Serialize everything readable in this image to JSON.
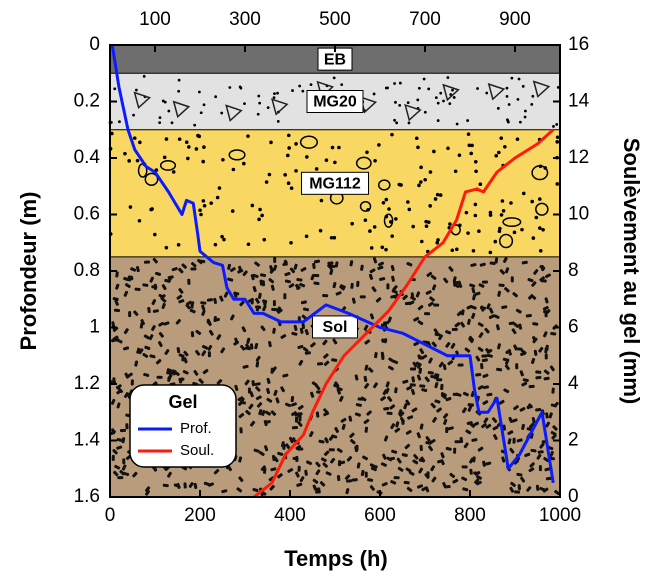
{
  "chart_data": {
    "type": "line",
    "x_label": "Temps (h)",
    "y_label": "Profondeur (m)",
    "y2_label": "Soulèvement au gel (mm)",
    "xlim": [
      0,
      1000
    ],
    "xticks": [
      0,
      200,
      400,
      600,
      800,
      1000
    ],
    "x2ticks": [
      100,
      300,
      500,
      700,
      900
    ],
    "ylim": [
      0,
      1.6
    ],
    "y_inverted": true,
    "yticks": [
      0,
      0.2,
      0.4,
      0.6,
      0.8,
      1,
      1.2,
      1.4,
      1.6
    ],
    "y2lim": [
      0,
      16
    ],
    "y2ticks": [
      0,
      2,
      4,
      6,
      8,
      10,
      12,
      14,
      16
    ],
    "legend_title": "Gel",
    "legend_position": "lower left",
    "layers": [
      {
        "name": "EB",
        "top": 0,
        "bottom": 0.1,
        "color": "#6e6e6e"
      },
      {
        "name": "MG20",
        "top": 0.1,
        "bottom": 0.3,
        "color": "#e2e2e2"
      },
      {
        "name": "MG112",
        "top": 0.3,
        "bottom": 0.75,
        "color": "#f8d862"
      },
      {
        "name": "Sol",
        "top": 0.75,
        "bottom": 1.6,
        "color": "#b89c7c"
      }
    ],
    "series": [
      {
        "name": "Prof.",
        "color": "#0a1cff",
        "x": [
          5,
          20,
          40,
          55,
          80,
          100,
          130,
          160,
          170,
          185,
          195,
          200,
          230,
          250,
          260,
          275,
          300,
          320,
          340,
          380,
          430,
          480,
          530,
          600,
          650,
          700,
          750,
          800,
          810,
          820,
          840,
          860,
          885,
          910,
          960,
          985
        ],
        "values": [
          0,
          0.15,
          0.3,
          0.37,
          0.43,
          0.45,
          0.52,
          0.6,
          0.55,
          0.56,
          0.67,
          0.73,
          0.77,
          0.78,
          0.86,
          0.9,
          0.9,
          0.95,
          0.95,
          0.98,
          0.98,
          0.92,
          0.95,
          1.0,
          1.02,
          1.06,
          1.1,
          1.1,
          1.22,
          1.3,
          1.3,
          1.25,
          1.5,
          1.45,
          1.3,
          1.55
        ]
      },
      {
        "name": "Soul.",
        "color": "#ff1a0a",
        "axis": "y2",
        "x": [
          320,
          360,
          390,
          430,
          450,
          480,
          520,
          570,
          620,
          660,
          700,
          740,
          770,
          790,
          815,
          830,
          860,
          900,
          950,
          985
        ],
        "values": [
          0,
          0.5,
          1.5,
          2.2,
          3,
          4,
          5,
          5.8,
          6.6,
          7.5,
          8.5,
          9,
          9.8,
          10.8,
          10.9,
          10.8,
          11.5,
          12,
          12.5,
          13
        ]
      }
    ]
  }
}
